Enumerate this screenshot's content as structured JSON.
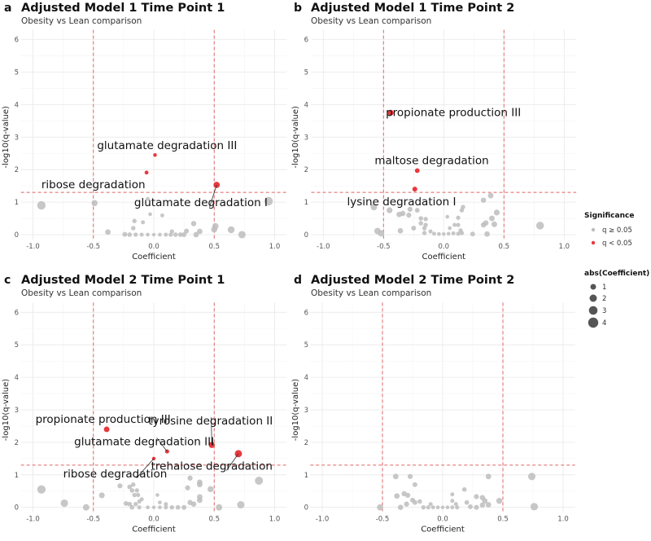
{
  "colors": {
    "not_significant": "#bdbdbd",
    "significant": "#e8383d",
    "threshold_line": "#e06666",
    "grid": "#ececec"
  },
  "legend": {
    "significance_title": "Significance",
    "significance_items": [
      {
        "label": "q ≥ 0.05",
        "color": "#bdbdbd"
      },
      {
        "label": "q < 0.05",
        "color": "#e8383d"
      }
    ],
    "size_title": "abs(Coefficient)",
    "size_items": [
      {
        "label": "1",
        "value": 1
      },
      {
        "label": "2",
        "value": 2
      },
      {
        "label": "3",
        "value": 3
      },
      {
        "label": "4",
        "value": 4
      }
    ]
  },
  "chart_data": [
    {
      "type": "scatter",
      "panel_tag": "a",
      "title": "Adjusted Model 1 Time Point 1",
      "subtitle": "Obesity vs Lean comparison",
      "xlabel": "Coefficient",
      "ylabel": "-log10(q-value)",
      "xlim": [
        -1.1,
        1.1
      ],
      "ylim": [
        0,
        6.3
      ],
      "xticks": [
        "-1.0",
        "-0.5",
        "0.0",
        "0.5",
        "1.0"
      ],
      "yticks": [
        "0",
        "1",
        "2",
        "3",
        "4",
        "5",
        "6"
      ],
      "thresholds": {
        "x": [
          -0.5,
          0.5
        ],
        "y": 1.3
      },
      "grid": true,
      "points": [
        [
          0.01,
          2.45,
          1
        ],
        [
          -0.06,
          1.91,
          1
        ],
        [
          0.52,
          1.53,
          1
        ],
        [
          -0.93,
          0.9,
          0
        ],
        [
          -0.49,
          0.97,
          0
        ],
        [
          -0.05,
          1.1,
          0
        ],
        [
          0.95,
          1.03,
          0
        ],
        [
          -0.03,
          0.63,
          0
        ],
        [
          0.07,
          0.59,
          0
        ],
        [
          -0.16,
          0.42,
          0
        ],
        [
          -0.09,
          0.38,
          0
        ],
        [
          -0.17,
          0.2,
          0
        ],
        [
          0.33,
          0.34,
          0
        ],
        [
          0.51,
          0.26,
          0
        ],
        [
          0.5,
          0.16,
          0
        ],
        [
          0.64,
          0.15,
          0
        ],
        [
          0.38,
          0.1,
          0
        ],
        [
          0.27,
          0.11,
          0
        ],
        [
          0.15,
          0.1,
          0
        ],
        [
          -0.38,
          0.08,
          0
        ],
        [
          0.73,
          0.0,
          0
        ],
        [
          0.35,
          0.0,
          0
        ],
        [
          -0.24,
          0.01,
          0
        ],
        [
          -0.2,
          0.0,
          0
        ],
        [
          -0.15,
          0.0,
          0
        ],
        [
          -0.1,
          0.0,
          0
        ],
        [
          -0.05,
          0.0,
          0
        ],
        [
          0.0,
          0.0,
          0
        ],
        [
          0.05,
          0.0,
          0
        ],
        [
          0.1,
          0.0,
          0
        ],
        [
          0.14,
          0.0,
          0
        ],
        [
          0.18,
          0.0,
          0
        ],
        [
          0.22,
          0.0,
          0
        ],
        [
          0.25,
          0.0,
          0
        ]
      ],
      "annotations": [
        {
          "text": "glutamate degradation III",
          "x": 0.11,
          "y": 2.76,
          "px": 0.01,
          "py": 2.45,
          "segment": false
        },
        {
          "text": "ribose degradation",
          "x": -0.5,
          "y": 1.55,
          "px": -0.06,
          "py": 1.91,
          "segment": false
        },
        {
          "text": "glutamate degradation I",
          "x": 0.39,
          "y": 1.0,
          "px": 0.52,
          "py": 1.53,
          "segment": true
        }
      ]
    },
    {
      "type": "scatter",
      "panel_tag": "b",
      "title": "Adjusted Model 1 Time Point 2",
      "subtitle": "Obesity vs Lean comparison",
      "xlabel": "Coefficient",
      "ylabel": "-log10(q-value)",
      "xlim": [
        -1.1,
        1.1
      ],
      "ylim": [
        0,
        6.3
      ],
      "xticks": [
        "-1.0",
        "-0.5",
        "0.0",
        "0.5",
        "1.0"
      ],
      "yticks": [
        "0",
        "1",
        "2",
        "3",
        "4",
        "5",
        "6"
      ],
      "thresholds": {
        "x": [
          -0.5,
          0.5
        ],
        "y": 1.3
      },
      "grid": true,
      "points": [
        [
          -0.44,
          3.75,
          1
        ],
        [
          -0.22,
          1.97,
          1
        ],
        [
          -0.24,
          1.4,
          1
        ],
        [
          -0.58,
          0.85,
          0
        ],
        [
          -0.45,
          0.75,
          0
        ],
        [
          -0.37,
          0.62,
          0
        ],
        [
          -0.34,
          0.65,
          0
        ],
        [
          -0.28,
          0.78,
          0
        ],
        [
          -0.29,
          0.6,
          0
        ],
        [
          -0.22,
          0.75,
          0
        ],
        [
          -0.19,
          0.5,
          0
        ],
        [
          -0.15,
          0.48,
          0
        ],
        [
          -0.19,
          0.35,
          0
        ],
        [
          -0.15,
          0.3,
          0
        ],
        [
          -0.16,
          0.2,
          0
        ],
        [
          -0.25,
          0.2,
          0
        ],
        [
          -0.36,
          0.12,
          0
        ],
        [
          -0.55,
          0.11,
          0
        ],
        [
          -0.52,
          0.04,
          0
        ],
        [
          -0.16,
          0.05,
          0
        ],
        [
          -0.11,
          0.1,
          0
        ],
        [
          -0.08,
          0.03,
          0
        ],
        [
          -0.04,
          0.02,
          0
        ],
        [
          0.0,
          0.02,
          0
        ],
        [
          0.04,
          0.03,
          0
        ],
        [
          0.08,
          0.04,
          0
        ],
        [
          0.12,
          0.03,
          0
        ],
        [
          0.15,
          0.05,
          0
        ],
        [
          0.03,
          0.55,
          0
        ],
        [
          0.12,
          0.52,
          0
        ],
        [
          0.15,
          0.75,
          0
        ],
        [
          0.16,
          0.85,
          0
        ],
        [
          0.09,
          0.3,
          0
        ],
        [
          0.12,
          0.3,
          0
        ],
        [
          0.05,
          0.2,
          0
        ],
        [
          0.14,
          0.13,
          0
        ],
        [
          0.24,
          0.02,
          0
        ],
        [
          0.33,
          1.06,
          0
        ],
        [
          0.39,
          1.2,
          0
        ],
        [
          0.44,
          0.68,
          0
        ],
        [
          0.4,
          0.5,
          0
        ],
        [
          0.42,
          0.32,
          0
        ],
        [
          0.35,
          0.36,
          0
        ],
        [
          0.33,
          0.3,
          0
        ],
        [
          0.36,
          0.02,
          0
        ],
        [
          0.8,
          0.28,
          0
        ]
      ],
      "annotations": [
        {
          "text": "propionate production III",
          "x": 0.08,
          "y": 3.77,
          "px": -0.44,
          "py": 3.75,
          "segment": false
        },
        {
          "text": "maltose degradation",
          "x": -0.1,
          "y": 2.29,
          "px": -0.22,
          "py": 1.97,
          "segment": false
        },
        {
          "text": "lysine degradation I",
          "x": -0.35,
          "y": 1.03,
          "px": -0.24,
          "py": 1.4,
          "segment": false
        }
      ]
    },
    {
      "type": "scatter",
      "panel_tag": "c",
      "title": "Adjusted Model 2 Time Point 1",
      "subtitle": "Obesity vs Lean comparison",
      "xlabel": "Coefficient",
      "ylabel": "-log10(q-value)",
      "xlim": [
        -1.1,
        1.1
      ],
      "ylim": [
        0,
        6.3
      ],
      "xticks": [
        "-1.0",
        "-0.5",
        "0.0",
        "0.5",
        "1.0"
      ],
      "yticks": [
        "0",
        "1",
        "2",
        "3",
        "4",
        "5",
        "6"
      ],
      "thresholds": {
        "x": [
          -0.5,
          0.5
        ],
        "y": 1.3
      },
      "grid": true,
      "points": [
        [
          -0.39,
          2.4,
          1
        ],
        [
          0.11,
          1.72,
          1
        ],
        [
          0.0,
          1.5,
          1
        ],
        [
          0.48,
          1.92,
          1
        ],
        [
          0.7,
          1.65,
          1
        ],
        [
          -0.93,
          0.55,
          0
        ],
        [
          -0.74,
          0.13,
          0
        ],
        [
          -0.56,
          0.0,
          0
        ],
        [
          -0.43,
          0.37,
          0
        ],
        [
          -0.28,
          0.66,
          0
        ],
        [
          -0.2,
          0.63,
          0
        ],
        [
          -0.17,
          0.7,
          0
        ],
        [
          -0.18,
          0.52,
          0
        ],
        [
          -0.14,
          0.52,
          0
        ],
        [
          -0.16,
          0.38,
          0
        ],
        [
          -0.13,
          0.38,
          0
        ],
        [
          -0.1,
          0.25,
          0
        ],
        [
          -0.12,
          0.18,
          0
        ],
        [
          -0.2,
          0.1,
          0
        ],
        [
          -0.23,
          0.12,
          0
        ],
        [
          -0.15,
          0.1,
          0
        ],
        [
          -0.18,
          0.0,
          0
        ],
        [
          -0.12,
          0.0,
          0
        ],
        [
          -0.05,
          0.0,
          0
        ],
        [
          0.0,
          0.0,
          0
        ],
        [
          0.05,
          0.0,
          0
        ],
        [
          0.1,
          0.0,
          0
        ],
        [
          0.15,
          0.0,
          0
        ],
        [
          0.2,
          0.0,
          0
        ],
        [
          0.25,
          0.0,
          0
        ],
        [
          0.03,
          0.38,
          0
        ],
        [
          0.05,
          0.15,
          0
        ],
        [
          0.1,
          0.1,
          0
        ],
        [
          0.3,
          0.9,
          0
        ],
        [
          0.28,
          0.6,
          0
        ],
        [
          0.38,
          0.77,
          0
        ],
        [
          0.38,
          0.7,
          0
        ],
        [
          0.47,
          0.56,
          0
        ],
        [
          0.38,
          0.32,
          0
        ],
        [
          0.38,
          0.22,
          0
        ],
        [
          0.3,
          0.15,
          0
        ],
        [
          0.33,
          0.1,
          0
        ],
        [
          0.54,
          0.0,
          0
        ],
        [
          0.72,
          0.08,
          0
        ],
        [
          0.87,
          0.82,
          0
        ]
      ],
      "annotations": [
        {
          "text": "propionate production III",
          "x": -0.42,
          "y": 2.73,
          "px": -0.39,
          "py": 2.4,
          "segment": false
        },
        {
          "text": "tyrosine degradation II",
          "x": 0.47,
          "y": 2.67,
          "px": 0.48,
          "py": 1.92,
          "segment": true
        },
        {
          "text": "glutamate degradation III",
          "x": -0.08,
          "y": 2.04,
          "px": 0.11,
          "py": 1.72,
          "segment": true
        },
        {
          "text": "trehalose degradation",
          "x": 0.48,
          "y": 1.28,
          "px": 0.7,
          "py": 1.65,
          "segment": true
        },
        {
          "text": "ribose degradation",
          "x": -0.32,
          "y": 1.05,
          "px": 0.0,
          "py": 1.5,
          "segment": true
        }
      ]
    },
    {
      "type": "scatter",
      "panel_tag": "d",
      "title": "Adjusted Model 2 Time Point 2",
      "subtitle": "Obesity vs Lean comparison",
      "xlabel": "Coefficient",
      "ylabel": "-log10(q-value)",
      "xlim": [
        -1.1,
        1.1
      ],
      "ylim": [
        0,
        6.3
      ],
      "xticks": [
        "-1.0",
        "-0.5",
        "0.0",
        "0.5",
        "1.0"
      ],
      "yticks": [
        "0",
        "1",
        "2",
        "3",
        "4",
        "5",
        "6"
      ],
      "thresholds": {
        "x": [
          -0.5,
          0.5
        ],
        "y": 1.3
      },
      "grid": true,
      "points": [
        [
          -0.39,
          0.95,
          0
        ],
        [
          -0.27,
          0.95,
          0
        ],
        [
          -0.23,
          0.7,
          0
        ],
        [
          -0.38,
          0.35,
          0
        ],
        [
          -0.32,
          0.42,
          0
        ],
        [
          -0.29,
          0.37,
          0
        ],
        [
          -0.35,
          0.0,
          0
        ],
        [
          -0.3,
          0.1,
          0
        ],
        [
          -0.25,
          0.22,
          0
        ],
        [
          -0.23,
          0.15,
          0
        ],
        [
          -0.19,
          0.18,
          0
        ],
        [
          -0.52,
          0.0,
          0
        ],
        [
          -0.1,
          0.1,
          0
        ],
        [
          -0.16,
          0.0,
          0
        ],
        [
          -0.12,
          0.0,
          0
        ],
        [
          -0.08,
          0.0,
          0
        ],
        [
          -0.04,
          0.0,
          0
        ],
        [
          0.0,
          0.0,
          0
        ],
        [
          0.04,
          0.0,
          0
        ],
        [
          0.08,
          0.0,
          0
        ],
        [
          0.12,
          0.0,
          0
        ],
        [
          0.08,
          0.4,
          0
        ],
        [
          0.08,
          0.2,
          0
        ],
        [
          0.11,
          0.1,
          0
        ],
        [
          0.18,
          0.55,
          0
        ],
        [
          0.2,
          0.15,
          0
        ],
        [
          0.23,
          0.02,
          0
        ],
        [
          0.28,
          0.33,
          0
        ],
        [
          0.33,
          0.3,
          0
        ],
        [
          0.35,
          0.2,
          0
        ],
        [
          0.33,
          0.07,
          0
        ],
        [
          0.28,
          0.0,
          0
        ],
        [
          0.38,
          0.08,
          0
        ],
        [
          0.38,
          0.95,
          0
        ],
        [
          0.47,
          0.2,
          0
        ],
        [
          0.74,
          0.95,
          0
        ],
        [
          0.76,
          0.02,
          0
        ]
      ],
      "annotations": []
    }
  ]
}
